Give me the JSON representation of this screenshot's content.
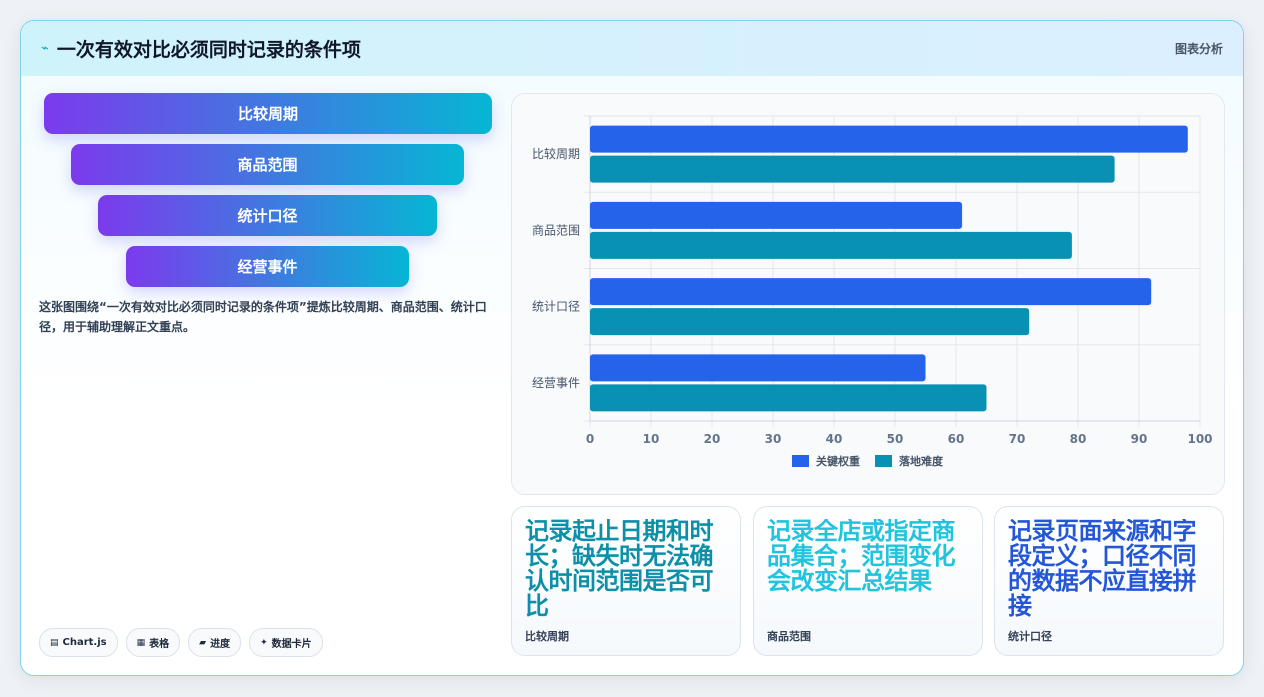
{
  "header": {
    "icon": "lightning-icon",
    "title": "一次有效对比必须同时记录的条件项",
    "tag": "图表分析"
  },
  "funnel": {
    "items": [
      "比较周期",
      "商品范围",
      "统计口径",
      "经营事件"
    ]
  },
  "description": "这张图围绕“一次有效对比必须同时记录的条件项”提炼比较周期、商品范围、统计口径，用于辅助理解正文重点。",
  "chips": [
    {
      "icon": "chart-icon",
      "label": "Chart.js"
    },
    {
      "icon": "table-icon",
      "label": "表格"
    },
    {
      "icon": "progress-icon",
      "label": "进度"
    },
    {
      "icon": "sparkle-icon",
      "label": "数据卡片"
    }
  ],
  "chart_data": {
    "type": "bar",
    "orientation": "horizontal",
    "categories": [
      "比较周期",
      "商品范围",
      "统计口径",
      "经营事件"
    ],
    "series": [
      {
        "name": "关键权重",
        "values": [
          98,
          61,
          92,
          55
        ],
        "color": "#2563eb"
      },
      {
        "name": "落地难度",
        "values": [
          86,
          79,
          72,
          65
        ],
        "color": "#0891b2"
      }
    ],
    "xlim": [
      0,
      100
    ],
    "xticks": [
      "0",
      "10",
      "20",
      "30",
      "40",
      "50",
      "60",
      "70",
      "80",
      "90",
      "100"
    ],
    "grid": true,
    "legend": "bottom"
  },
  "cards": [
    {
      "value": "记录起止日期和时长；缺失时无法确认时间范围是否可比",
      "label": "比较周期",
      "color": "#0e8fa8"
    },
    {
      "value": "记录全店或指定商品集合；范围变化会改变汇总结果",
      "label": "商品范围",
      "color": "#22c3dd"
    },
    {
      "value": "记录页面来源和字段定义；口径不同的数据不应直接拼接",
      "label": "统计口径",
      "color": "#2456d8"
    }
  ]
}
